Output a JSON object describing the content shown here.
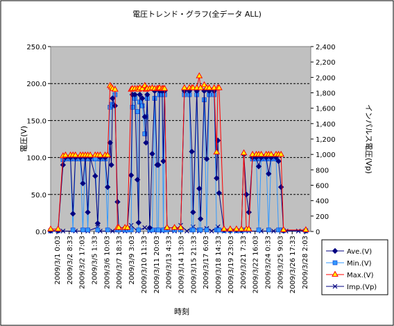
{
  "chart_data": {
    "type": "line",
    "title": "電圧トレンド・グラフ(全データ ALL)",
    "xlabel": "時刻",
    "ylabel": "電圧(V)",
    "y2label": "インパルス電圧(Vp)",
    "ylim": [
      0,
      250
    ],
    "y2lim": [
      0,
      2400
    ],
    "yticks": [
      "0.0",
      "50.0",
      "100.0",
      "150.0",
      "200.0",
      "250.0"
    ],
    "y2ticks": [
      "0",
      "200",
      "400",
      "600",
      "800",
      "1,000",
      "1,200",
      "1,400",
      "1,600",
      "1,800",
      "2,000",
      "2,200",
      "2,400"
    ],
    "xticks": [
      "2009/3/1 0:03",
      "2009/3/2 8:33",
      "2009/3/2 17:03",
      "2009/3/5 1:33",
      "2009/3/6 10:03",
      "2009/3/7 18:33",
      "2009/3/9 3:03",
      "2009/3/10 11:33",
      "2009/3/11 20:03",
      "2009/3/13 4:33",
      "2009/3/14 13:03",
      "2009/3/15 21:33",
      "2009/3/17 6:03",
      "2009/3/18 14:33",
      "2009/3/19 23:03",
      "2009/3/21 7:33",
      "2009/3/22 16:03",
      "2009/3/24 0:33",
      "2009/3/25 9:03",
      "2009/3/26 17:33",
      "2009/3/28 2:03"
    ],
    "grid": true,
    "legend_position": "bottom-right",
    "series": [
      {
        "name": "Ave.(V)",
        "axis": "left",
        "color": "#000080",
        "marker": "diamond",
        "values": [
          [
            0,
            1
          ],
          [
            0.6,
            1
          ],
          [
            1.0,
            90
          ],
          [
            1.2,
            100
          ],
          [
            1.6,
            100
          ],
          [
            1.8,
            24
          ],
          [
            2.0,
            100
          ],
          [
            2.4,
            100
          ],
          [
            2.6,
            65
          ],
          [
            2.8,
            100
          ],
          [
            3.0,
            26
          ],
          [
            3.2,
            100
          ],
          [
            3.6,
            75
          ],
          [
            3.8,
            11
          ],
          [
            4.0,
            100
          ],
          [
            4.4,
            100
          ],
          [
            4.6,
            60
          ],
          [
            4.8,
            120
          ],
          [
            4.9,
            90
          ],
          [
            5.0,
            180
          ],
          [
            5.2,
            170
          ],
          [
            5.4,
            40
          ],
          [
            5.5,
            5
          ],
          [
            6.0,
            5
          ],
          [
            6.2,
            5
          ],
          [
            6.5,
            76
          ],
          [
            6.6,
            185
          ],
          [
            6.8,
            185
          ],
          [
            7.0,
            70
          ],
          [
            7.1,
            12
          ],
          [
            7.2,
            185
          ],
          [
            7.4,
            180
          ],
          [
            7.6,
            155
          ],
          [
            7.7,
            120
          ],
          [
            7.8,
            185
          ],
          [
            8.0,
            5
          ],
          [
            8.2,
            105
          ],
          [
            8.4,
            190
          ],
          [
            8.6,
            90
          ],
          [
            8.7,
            90
          ],
          [
            8.8,
            190
          ],
          [
            9.0,
            190
          ],
          [
            9.1,
            95
          ],
          [
            9.2,
            190
          ],
          [
            9.4,
            5
          ],
          [
            10.0,
            5
          ],
          [
            10.5,
            5
          ],
          [
            10.8,
            190
          ],
          [
            11.2,
            190
          ],
          [
            11.4,
            108
          ],
          [
            11.5,
            26
          ],
          [
            11.8,
            190
          ],
          [
            12.0,
            58
          ],
          [
            12.1,
            17
          ],
          [
            12.4,
            190
          ],
          [
            12.6,
            98
          ],
          [
            12.8,
            190
          ],
          [
            13.2,
            190
          ],
          [
            13.4,
            72
          ],
          [
            13.5,
            123
          ],
          [
            13.6,
            52
          ],
          [
            14.0,
            2
          ],
          [
            14.5,
            2
          ],
          [
            15.0,
            2
          ],
          [
            15.4,
            2
          ],
          [
            15.6,
            104
          ],
          [
            15.8,
            50
          ],
          [
            16.0,
            26
          ],
          [
            16.3,
            100
          ],
          [
            16.6,
            100
          ],
          [
            16.8,
            88
          ],
          [
            17.0,
            100
          ],
          [
            17.4,
            100
          ],
          [
            17.6,
            78
          ],
          [
            17.8,
            100
          ],
          [
            18.2,
            100
          ],
          [
            18.4,
            95
          ],
          [
            18.6,
            60
          ],
          [
            18.8,
            1
          ],
          [
            20.6,
            1
          ]
        ]
      },
      {
        "name": "Min.(V)",
        "axis": "left",
        "color": "#3399ff",
        "marker": "square",
        "values": [
          [
            0,
            1
          ],
          [
            0.6,
            1
          ],
          [
            1.0,
            97
          ],
          [
            1.2,
            98
          ],
          [
            1.6,
            98
          ],
          [
            1.8,
            2
          ],
          [
            2.0,
            98
          ],
          [
            2.4,
            98
          ],
          [
            2.6,
            2
          ],
          [
            2.8,
            98
          ],
          [
            3.0,
            2
          ],
          [
            3.2,
            98
          ],
          [
            3.6,
            98
          ],
          [
            3.8,
            2
          ],
          [
            4.0,
            98
          ],
          [
            4.4,
            98
          ],
          [
            4.6,
            2
          ],
          [
            4.8,
            168
          ],
          [
            4.9,
            172
          ],
          [
            5.0,
            170
          ],
          [
            5.2,
            185
          ],
          [
            5.4,
            2
          ],
          [
            5.5,
            2
          ],
          [
            6.0,
            2
          ],
          [
            6.2,
            2
          ],
          [
            6.5,
            2
          ],
          [
            6.6,
            168
          ],
          [
            6.8,
            180
          ],
          [
            7.0,
            162
          ],
          [
            7.1,
            2
          ],
          [
            7.2,
            175
          ],
          [
            7.4,
            170
          ],
          [
            7.6,
            132
          ],
          [
            7.7,
            155
          ],
          [
            7.8,
            180
          ],
          [
            8.0,
            2
          ],
          [
            8.2,
            2
          ],
          [
            8.4,
            180
          ],
          [
            8.6,
            2
          ],
          [
            8.7,
            2
          ],
          [
            8.8,
            185
          ],
          [
            9.0,
            185
          ],
          [
            9.1,
            2
          ],
          [
            9.2,
            185
          ],
          [
            9.4,
            2
          ],
          [
            10.0,
            2
          ],
          [
            10.5,
            2
          ],
          [
            10.8,
            185
          ],
          [
            11.2,
            185
          ],
          [
            11.4,
            2
          ],
          [
            11.5,
            2
          ],
          [
            11.8,
            185
          ],
          [
            12.0,
            2
          ],
          [
            12.1,
            2
          ],
          [
            12.4,
            178
          ],
          [
            12.6,
            2
          ],
          [
            12.8,
            185
          ],
          [
            13.2,
            185
          ],
          [
            13.4,
            2
          ],
          [
            13.5,
            2
          ],
          [
            13.6,
            2
          ],
          [
            14.0,
            1
          ],
          [
            14.5,
            1
          ],
          [
            15.0,
            1
          ],
          [
            15.4,
            1
          ],
          [
            15.6,
            2
          ],
          [
            15.8,
            2
          ],
          [
            16.0,
            2
          ],
          [
            16.3,
            98
          ],
          [
            16.6,
            98
          ],
          [
            16.8,
            2
          ],
          [
            17.0,
            98
          ],
          [
            17.4,
            98
          ],
          [
            17.6,
            2
          ],
          [
            17.8,
            98
          ],
          [
            18.2,
            98
          ],
          [
            18.4,
            2
          ],
          [
            18.6,
            2
          ],
          [
            18.8,
            1
          ],
          [
            20.6,
            1
          ]
        ]
      },
      {
        "name": "Max.(V)",
        "axis": "left",
        "color": "#ff0000",
        "marker": "triangle",
        "values": [
          [
            0,
            3
          ],
          [
            0.6,
            3
          ],
          [
            1.0,
            102
          ],
          [
            1.2,
            103
          ],
          [
            1.6,
            103
          ],
          [
            1.8,
            103
          ],
          [
            2.0,
            103
          ],
          [
            2.4,
            103
          ],
          [
            2.6,
            103
          ],
          [
            2.8,
            103
          ],
          [
            3.0,
            103
          ],
          [
            3.2,
            103
          ],
          [
            3.6,
            103
          ],
          [
            3.8,
            103
          ],
          [
            4.0,
            103
          ],
          [
            4.4,
            103
          ],
          [
            4.6,
            103
          ],
          [
            4.8,
            197
          ],
          [
            4.9,
            195
          ],
          [
            5.0,
            193
          ],
          [
            5.2,
            192
          ],
          [
            5.4,
            5
          ],
          [
            5.5,
            5
          ],
          [
            6.0,
            5
          ],
          [
            6.2,
            5
          ],
          [
            6.5,
            192
          ],
          [
            6.6,
            193
          ],
          [
            6.8,
            193
          ],
          [
            7.0,
            193
          ],
          [
            7.1,
            192
          ],
          [
            7.2,
            194
          ],
          [
            7.4,
            193
          ],
          [
            7.6,
            197
          ],
          [
            7.7,
            192
          ],
          [
            7.8,
            193
          ],
          [
            8.0,
            193
          ],
          [
            8.2,
            194
          ],
          [
            8.4,
            193
          ],
          [
            8.6,
            193
          ],
          [
            8.7,
            193
          ],
          [
            8.8,
            194
          ],
          [
            9.0,
            193
          ],
          [
            9.1,
            193
          ],
          [
            9.2,
            193
          ],
          [
            9.4,
            5
          ],
          [
            10.0,
            5
          ],
          [
            10.5,
            5
          ],
          [
            10.8,
            194
          ],
          [
            11.2,
            194
          ],
          [
            11.4,
            194
          ],
          [
            11.5,
            194
          ],
          [
            11.8,
            194
          ],
          [
            12.0,
            210
          ],
          [
            12.1,
            194
          ],
          [
            12.4,
            198
          ],
          [
            12.6,
            194
          ],
          [
            12.8,
            194
          ],
          [
            13.2,
            194
          ],
          [
            13.4,
            107
          ],
          [
            13.5,
            194
          ],
          [
            13.6,
            194
          ],
          [
            14.0,
            3
          ],
          [
            14.5,
            3
          ],
          [
            15.0,
            3
          ],
          [
            15.4,
            3
          ],
          [
            15.6,
            106
          ],
          [
            15.8,
            3
          ],
          [
            16.0,
            3
          ],
          [
            16.3,
            104
          ],
          [
            16.6,
            104
          ],
          [
            16.8,
            104
          ],
          [
            17.0,
            104
          ],
          [
            17.4,
            104
          ],
          [
            17.6,
            104
          ],
          [
            17.8,
            104
          ],
          [
            18.2,
            104
          ],
          [
            18.4,
            104
          ],
          [
            18.6,
            104
          ],
          [
            18.8,
            2
          ],
          [
            20.6,
            2
          ]
        ]
      },
      {
        "name": "Imp.(Vp)",
        "axis": "right",
        "color": "#000080",
        "marker": "x",
        "values": [
          [
            0,
            5
          ],
          [
            1.0,
            5
          ],
          [
            2.0,
            5
          ],
          [
            3.0,
            5
          ],
          [
            3.8,
            55
          ],
          [
            4.0,
            5
          ],
          [
            5.0,
            5
          ],
          [
            6.0,
            5
          ],
          [
            6.5,
            80
          ],
          [
            7.0,
            5
          ],
          [
            7.6,
            50
          ],
          [
            8.0,
            5
          ],
          [
            9.0,
            5
          ],
          [
            10.0,
            5
          ],
          [
            10.5,
            80
          ],
          [
            11.0,
            5
          ],
          [
            11.5,
            60
          ],
          [
            12.0,
            5
          ],
          [
            12.6,
            40
          ],
          [
            13.0,
            5
          ],
          [
            13.5,
            60
          ],
          [
            14.0,
            5
          ],
          [
            15.0,
            5
          ],
          [
            16.0,
            5
          ],
          [
            17.0,
            5
          ],
          [
            18.0,
            5
          ],
          [
            19.0,
            5
          ],
          [
            20.0,
            5
          ],
          [
            20.6,
            5
          ]
        ]
      }
    ]
  }
}
